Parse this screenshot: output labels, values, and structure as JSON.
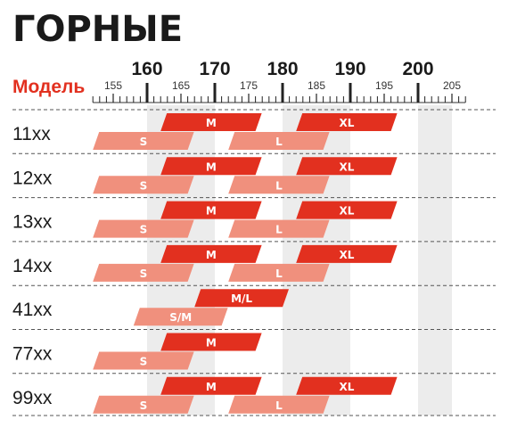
{
  "title": "ГОРНЫЕ",
  "column_header": "Модель",
  "colors": {
    "header": "#e2301f",
    "primary_bar": "#e2301f",
    "secondary_bar": "#f0907d",
    "band": "#ececec",
    "text": "#1a1a1a"
  },
  "chart_data": {
    "type": "bar",
    "orientation": "horizontal range (gantt)",
    "x_axis": {
      "range": [
        152,
        207
      ],
      "major_ticks": [
        160,
        170,
        180,
        190,
        200
      ],
      "minor_labels": [
        155,
        165,
        175,
        185,
        195,
        205
      ],
      "unit_step": 1,
      "position": "top"
    },
    "grid_bands": [
      [
        160,
        170
      ],
      [
        180,
        190
      ],
      [
        200,
        205
      ]
    ],
    "models": [
      {
        "name": "11xx",
        "sizes": [
          {
            "label": "S",
            "from": 152,
            "to": 166,
            "row": "bottom"
          },
          {
            "label": "M",
            "from": 162,
            "to": 176,
            "row": "top"
          },
          {
            "label": "L",
            "from": 172,
            "to": 186,
            "row": "bottom"
          },
          {
            "label": "XL",
            "from": 182,
            "to": 196,
            "row": "top"
          }
        ]
      },
      {
        "name": "12xx",
        "sizes": [
          {
            "label": "S",
            "from": 152,
            "to": 166,
            "row": "bottom"
          },
          {
            "label": "M",
            "from": 162,
            "to": 176,
            "row": "top"
          },
          {
            "label": "L",
            "from": 172,
            "to": 186,
            "row": "bottom"
          },
          {
            "label": "XL",
            "from": 182,
            "to": 196,
            "row": "top"
          }
        ]
      },
      {
        "name": "13xx",
        "sizes": [
          {
            "label": "S",
            "from": 152,
            "to": 166,
            "row": "bottom"
          },
          {
            "label": "M",
            "from": 162,
            "to": 176,
            "row": "top"
          },
          {
            "label": "L",
            "from": 172,
            "to": 186,
            "row": "bottom"
          },
          {
            "label": "XL",
            "from": 182,
            "to": 196,
            "row": "top"
          }
        ]
      },
      {
        "name": "14xx",
        "sizes": [
          {
            "label": "S",
            "from": 152,
            "to": 166,
            "row": "bottom"
          },
          {
            "label": "M",
            "from": 162,
            "to": 176,
            "row": "top"
          },
          {
            "label": "L",
            "from": 172,
            "to": 186,
            "row": "bottom"
          },
          {
            "label": "XL",
            "from": 182,
            "to": 196,
            "row": "top"
          }
        ]
      },
      {
        "name": "41xx",
        "sizes": [
          {
            "label": "S/M",
            "from": 158,
            "to": 171,
            "row": "bottom"
          },
          {
            "label": "M/L",
            "from": 167,
            "to": 180,
            "row": "top"
          }
        ]
      },
      {
        "name": "77xx",
        "sizes": [
          {
            "label": "S",
            "from": 152,
            "to": 166,
            "row": "bottom"
          },
          {
            "label": "M",
            "from": 162,
            "to": 176,
            "row": "top"
          }
        ]
      },
      {
        "name": "99xx",
        "sizes": [
          {
            "label": "S",
            "from": 152,
            "to": 166,
            "row": "bottom"
          },
          {
            "label": "M",
            "from": 162,
            "to": 176,
            "row": "top"
          },
          {
            "label": "L",
            "from": 172,
            "to": 186,
            "row": "bottom"
          },
          {
            "label": "XL",
            "from": 182,
            "to": 196,
            "row": "top"
          }
        ]
      }
    ]
  }
}
